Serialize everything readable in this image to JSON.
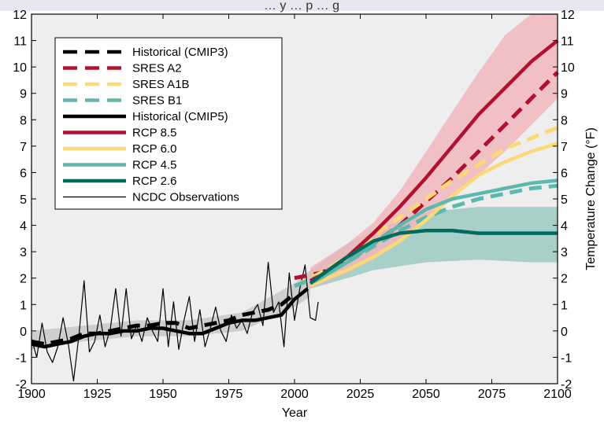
{
  "chart_data": {
    "type": "line",
    "title": "… y … p … g",
    "xlabel": "Year",
    "ylabel_right": "Temperature Change (°F)",
    "xlim": [
      1900,
      2100
    ],
    "ylim": [
      -2,
      12
    ],
    "x_ticks": [
      "1900",
      "1925",
      "1950",
      "1975",
      "2000",
      "2025",
      "2050",
      "2075",
      "2100"
    ],
    "y_ticks_left": [
      "-2",
      "-1",
      "0",
      "1",
      "2",
      "3",
      "4",
      "5",
      "6",
      "7",
      "8",
      "9",
      "10",
      "11",
      "12"
    ],
    "y_ticks_right": [
      "-2",
      "-1",
      "0",
      "1",
      "2",
      "3",
      "4",
      "5",
      "6",
      "7",
      "8",
      "9",
      "10",
      "11",
      "12"
    ],
    "legend_position": "top-left",
    "legend": [
      {
        "label": "Historical (CMIP3)",
        "color": "#000000",
        "dashed": true
      },
      {
        "label": "SRES A2",
        "color": "#b0112f",
        "dashed": true
      },
      {
        "label": "SRES A1B",
        "color": "#fbd977",
        "dashed": true
      },
      {
        "label": "SRES B1",
        "color": "#5db8ad",
        "dashed": true
      },
      {
        "label": "Historical (CMIP5)",
        "color": "#000000",
        "dashed": false
      },
      {
        "label": "RCP 8.5",
        "color": "#b0112f",
        "dashed": false
      },
      {
        "label": "RCP 6.0",
        "color": "#fbd977",
        "dashed": false
      },
      {
        "label": "RCP 4.5",
        "color": "#5db8ad",
        "dashed": false
      },
      {
        "label": "RCP 2.6",
        "color": "#006b5d",
        "dashed": false
      },
      {
        "label": "NCDC Observations",
        "color": "#000000",
        "dashed": false,
        "thin": true
      }
    ],
    "bands": [
      {
        "name": "Historical range",
        "color": "#c8c8c8",
        "x": [
          1900,
          1920,
          1940,
          1960,
          1980,
          2000,
          2006
        ],
        "lower": [
          -0.7,
          -0.4,
          -0.2,
          -0.2,
          0.0,
          0.9,
          1.3
        ],
        "upper": [
          0.0,
          0.2,
          0.4,
          0.4,
          0.7,
          1.8,
          2.3
        ]
      },
      {
        "name": "RCP 2.6 range",
        "color": "#9cc9c2",
        "x": [
          2006,
          2020,
          2030,
          2050,
          2070,
          2090,
          2100
        ],
        "lower": [
          1.6,
          2.0,
          2.3,
          2.6,
          2.7,
          2.6,
          2.6
        ],
        "upper": [
          2.3,
          3.3,
          3.8,
          4.5,
          4.7,
          4.7,
          4.7
        ]
      },
      {
        "name": "RCP 8.5 range",
        "color": "#f1b7bd",
        "x": [
          2006,
          2020,
          2030,
          2040,
          2050,
          2060,
          2070,
          2080,
          2090,
          2100
        ],
        "lower": [
          1.6,
          2.2,
          2.7,
          3.4,
          4.2,
          5.0,
          5.9,
          6.8,
          7.8,
          8.8
        ],
        "upper": [
          2.4,
          3.3,
          4.1,
          5.3,
          6.8,
          8.3,
          9.8,
          11.2,
          12.0,
          12.0
        ]
      }
    ],
    "series": [
      {
        "name": "Historical (CMIP3)",
        "color": "#000000",
        "dashed": true,
        "width": 5,
        "x": [
          1900,
          1905,
          1910,
          1915,
          1920,
          1925,
          1930,
          1935,
          1940,
          1945,
          1950,
          1955,
          1960,
          1965,
          1970,
          1975,
          1980,
          1985,
          1990,
          1995,
          2000
        ],
        "y": [
          -0.4,
          -0.5,
          -0.4,
          -0.3,
          -0.1,
          -0.1,
          0.0,
          0.1,
          0.2,
          0.2,
          0.3,
          0.3,
          0.1,
          0.2,
          0.3,
          0.4,
          0.6,
          0.7,
          0.8,
          1.0,
          1.4
        ]
      },
      {
        "name": "SRES A2",
        "color": "#b0112f",
        "dashed": true,
        "width": 5,
        "x": [
          2000,
          2010,
          2020,
          2030,
          2040,
          2050,
          2060,
          2070,
          2080,
          2090,
          2100
        ],
        "y": [
          2.0,
          2.2,
          2.6,
          3.3,
          4.0,
          4.9,
          5.8,
          6.8,
          7.8,
          8.8,
          9.8
        ]
      },
      {
        "name": "SRES A1B",
        "color": "#fbd977",
        "dashed": true,
        "width": 5,
        "x": [
          2000,
          2010,
          2020,
          2030,
          2040,
          2050,
          2060,
          2070,
          2080,
          2090,
          2100
        ],
        "y": [
          1.7,
          2.2,
          2.8,
          3.6,
          4.3,
          5.0,
          5.7,
          6.3,
          6.9,
          7.3,
          7.7
        ]
      },
      {
        "name": "SRES B1",
        "color": "#5db8ad",
        "dashed": true,
        "width": 5,
        "x": [
          2000,
          2010,
          2020,
          2030,
          2040,
          2050,
          2060,
          2070,
          2080,
          2090,
          2100
        ],
        "y": [
          1.7,
          2.1,
          2.6,
          3.2,
          3.8,
          4.3,
          4.7,
          5.0,
          5.2,
          5.4,
          5.5
        ]
      },
      {
        "name": "Historical (CMIP5)",
        "color": "#000000",
        "dashed": false,
        "width": 4.5,
        "x": [
          1900,
          1905,
          1910,
          1915,
          1920,
          1925,
          1930,
          1935,
          1940,
          1945,
          1950,
          1955,
          1960,
          1965,
          1970,
          1975,
          1980,
          1985,
          1990,
          1995,
          2000,
          2005
        ],
        "y": [
          -0.5,
          -0.6,
          -0.5,
          -0.4,
          -0.2,
          -0.1,
          -0.1,
          0.0,
          0.0,
          0.1,
          0.1,
          0.0,
          -0.1,
          -0.1,
          0.1,
          0.3,
          0.4,
          0.4,
          0.5,
          0.6,
          1.2,
          1.6
        ]
      },
      {
        "name": "RCP 8.5",
        "color": "#b0112f",
        "dashed": false,
        "width": 4.5,
        "x": [
          2006,
          2010,
          2020,
          2030,
          2040,
          2050,
          2060,
          2070,
          2080,
          2090,
          2100
        ],
        "y": [
          1.9,
          2.1,
          2.8,
          3.7,
          4.7,
          5.8,
          7.0,
          8.2,
          9.2,
          10.2,
          11.0
        ]
      },
      {
        "name": "RCP 6.0",
        "color": "#fbd977",
        "dashed": false,
        "width": 4.5,
        "x": [
          2006,
          2010,
          2020,
          2030,
          2040,
          2050,
          2060,
          2070,
          2080,
          2090,
          2100
        ],
        "y": [
          1.7,
          1.9,
          2.3,
          2.8,
          3.4,
          4.2,
          5.1,
          5.9,
          6.4,
          6.8,
          7.1
        ]
      },
      {
        "name": "RCP 4.5",
        "color": "#5db8ad",
        "dashed": false,
        "width": 4.5,
        "x": [
          2006,
          2010,
          2020,
          2030,
          2040,
          2050,
          2060,
          2070,
          2080,
          2090,
          2100
        ],
        "y": [
          1.8,
          2.0,
          2.6,
          3.3,
          4.0,
          4.6,
          5.0,
          5.2,
          5.4,
          5.6,
          5.7
        ]
      },
      {
        "name": "RCP 2.6",
        "color": "#006b5d",
        "dashed": false,
        "width": 4.5,
        "x": [
          2006,
          2010,
          2020,
          2030,
          2040,
          2050,
          2060,
          2070,
          2080,
          2090,
          2100
        ],
        "y": [
          1.8,
          2.1,
          2.8,
          3.4,
          3.7,
          3.8,
          3.8,
          3.7,
          3.7,
          3.7,
          3.7
        ]
      },
      {
        "name": "NCDC Observations",
        "color": "#000000",
        "dashed": false,
        "width": 1.2,
        "x": [
          1900,
          1902,
          1904,
          1906,
          1908,
          1910,
          1912,
          1914,
          1916,
          1918,
          1920,
          1922,
          1924,
          1926,
          1928,
          1930,
          1932,
          1934,
          1936,
          1938,
          1940,
          1942,
          1944,
          1946,
          1948,
          1950,
          1952,
          1954,
          1956,
          1958,
          1960,
          1962,
          1964,
          1966,
          1968,
          1970,
          1972,
          1974,
          1976,
          1978,
          1980,
          1982,
          1984,
          1986,
          1988,
          1990,
          1992,
          1994,
          1996,
          1998,
          2000,
          2002,
          2004,
          2006,
          2008,
          2009
        ],
        "y": [
          -0.3,
          -1.0,
          0.3,
          -0.8,
          -1.2,
          -0.6,
          0.5,
          -0.5,
          -1.9,
          -0.2,
          1.9,
          -0.8,
          -0.4,
          0.6,
          -0.6,
          0.1,
          1.6,
          -0.2,
          1.6,
          -0.3,
          0.2,
          -0.4,
          0.5,
          0.0,
          -0.4,
          1.6,
          -0.6,
          1.1,
          -0.7,
          0.4,
          1.3,
          -0.4,
          0.8,
          -0.6,
          0.1,
          0.9,
          0.0,
          -0.4,
          0.6,
          0.1,
          0.4,
          -0.1,
          0.7,
          1.0,
          0.2,
          2.6,
          0.7,
          1.1,
          -0.6,
          2.2,
          0.4,
          1.6,
          2.5,
          0.5,
          0.4,
          1.1
        ]
      }
    ]
  }
}
